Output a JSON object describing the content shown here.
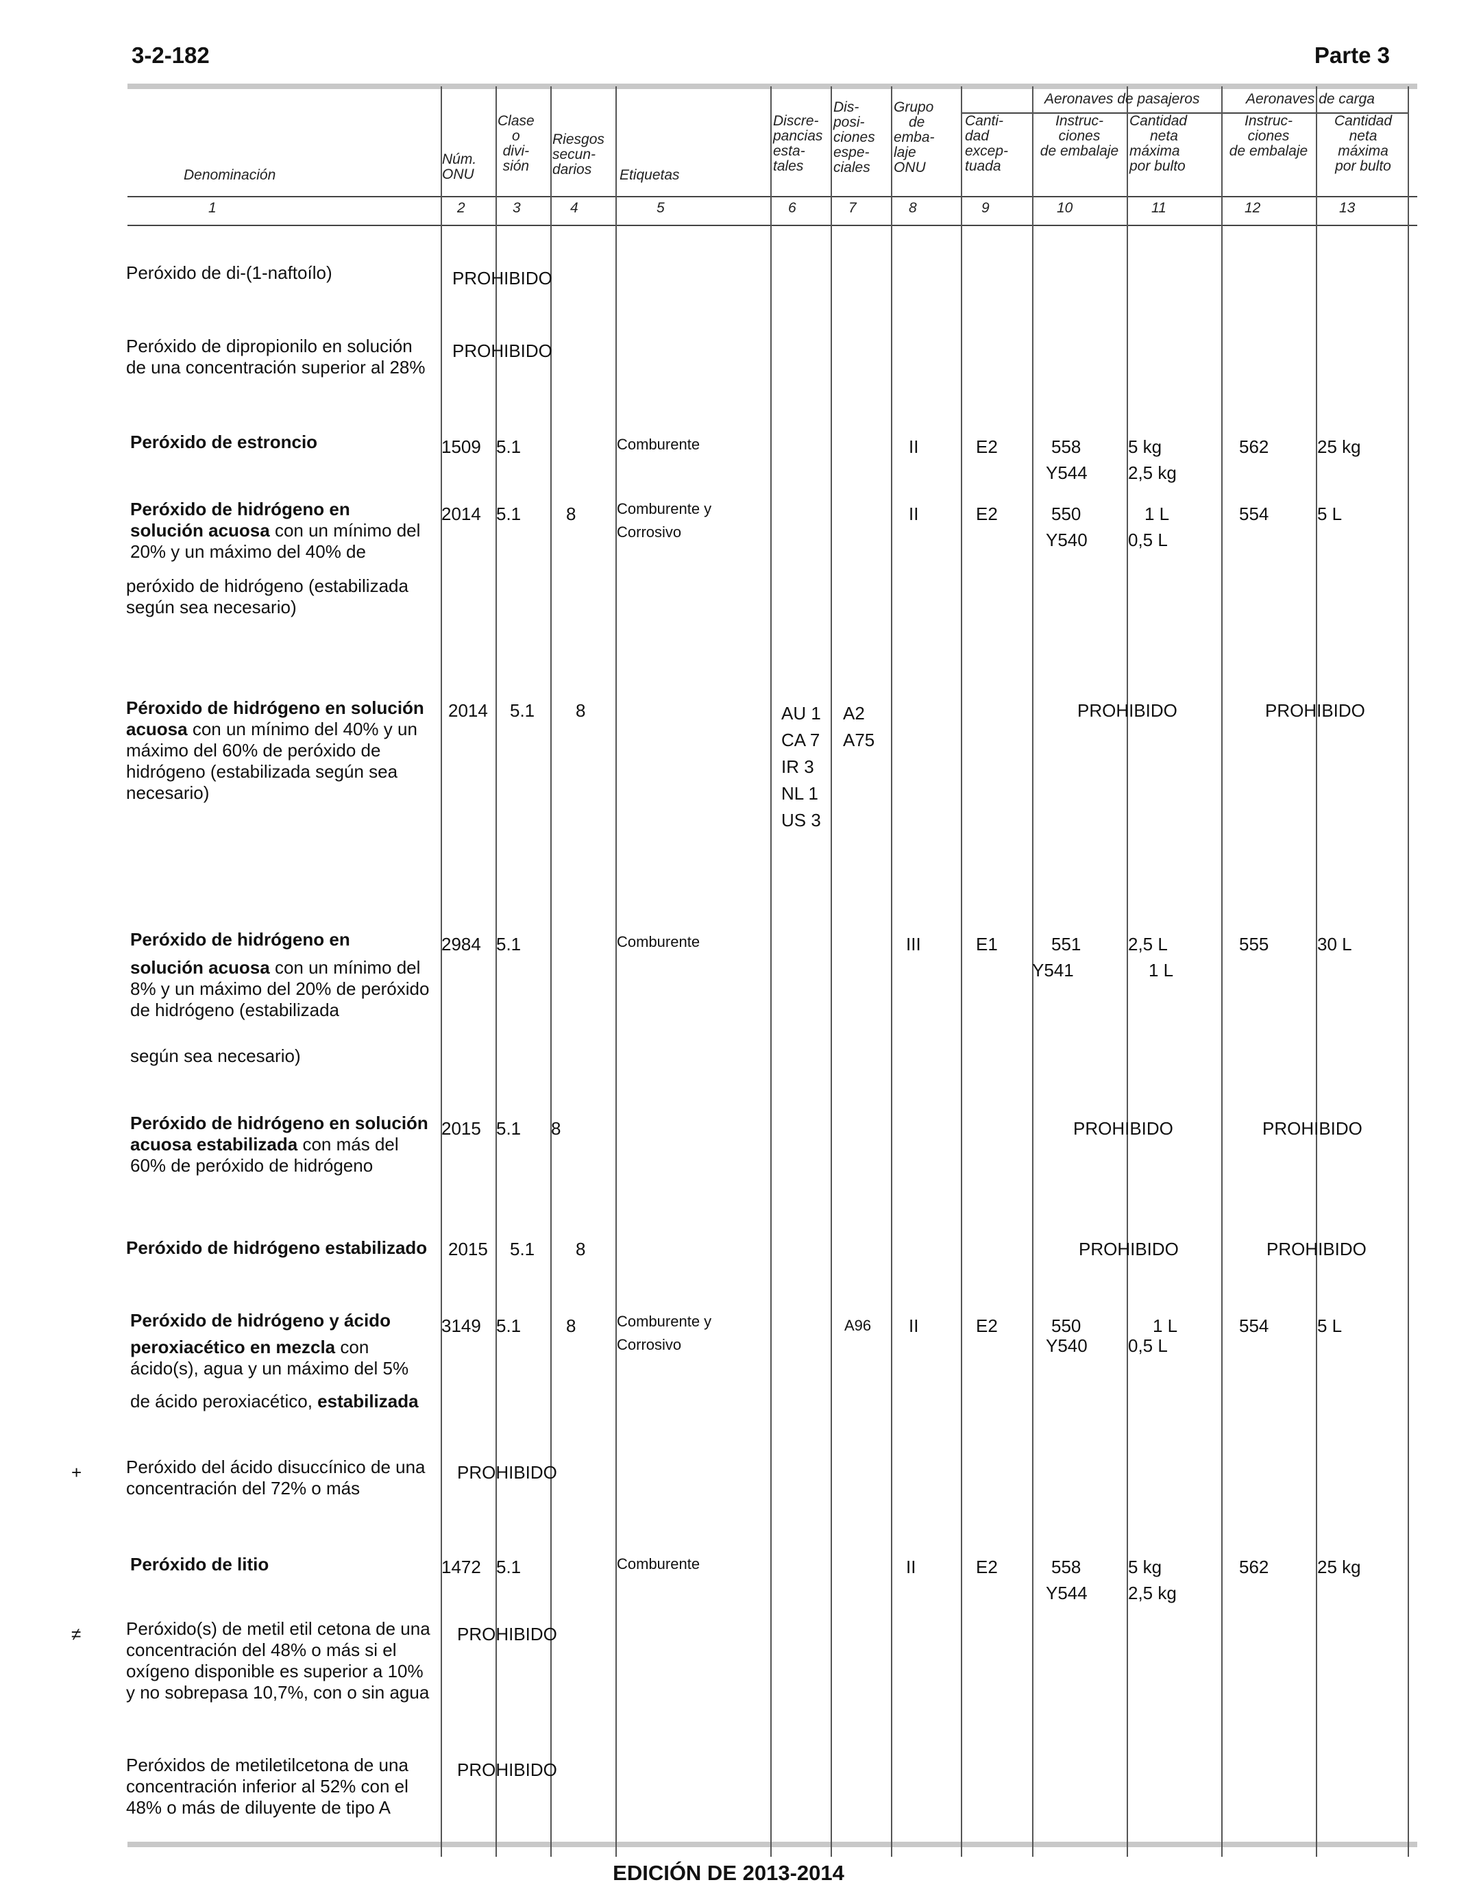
{
  "page": {
    "number": "3-2-182",
    "part": "Parte 3",
    "footer": "EDICIÓN DE 2013-2014"
  },
  "headers": {
    "passenger_group": "Aeronaves de pasajeros",
    "cargo_group": "Aeronaves de carga",
    "c1": "Denominación",
    "c2": [
      "Núm.",
      "ONU"
    ],
    "c3": [
      "Clase",
      "o",
      "divi-",
      "sión"
    ],
    "c4": [
      "Riesgos",
      "secun-",
      "darios"
    ],
    "c5": "Etiquetas",
    "c6": [
      "Discre-",
      "pancias",
      "esta-",
      "tales"
    ],
    "c7": [
      "Dis-",
      "posi-",
      "ciones",
      "espe-",
      "ciales"
    ],
    "c8": [
      "Grupo",
      "de",
      "emba-",
      "laje",
      "ONU"
    ],
    "c9": [
      "Canti-",
      "dad",
      "excep-",
      "tuada"
    ],
    "c10": [
      "Instruc-",
      "ciones",
      "de embalaje"
    ],
    "c11": [
      "Cantidad",
      "neta",
      "máxima",
      "por bulto"
    ],
    "c12": [
      "Instruc-",
      "ciones",
      "de embalaje"
    ],
    "c13": [
      "Cantidad",
      "neta",
      "máxima",
      "por bulto"
    ],
    "numbers": [
      "1",
      "2",
      "3",
      "4",
      "5",
      "6",
      "7",
      "8",
      "9",
      "10",
      "11",
      "12",
      "13"
    ]
  },
  "rows": [
    {
      "name_plain": "Peróxido de di-(1-naftoílo)",
      "prohibido": "PROHIBIDO"
    },
    {
      "name_plain": "Peróxido de dipropionilo en solución de una concentración superior al 28%",
      "prohibido": "PROHIBIDO"
    },
    {
      "name_bold": "Peróxido de estroncio",
      "un": "1509",
      "clase": "5.1",
      "etiqueta": "Comburente",
      "grupo": "II",
      "exc": "E2",
      "pi_pax": [
        "558",
        "Y544"
      ],
      "qty_pax": [
        "5 kg",
        "2,5 kg"
      ],
      "pi_cargo": "562",
      "qty_cargo": "25 kg"
    },
    {
      "name_bold1": "Peróxido de hidrógeno en",
      "name_bold2": "solución acuosa",
      "name_rest1": " con un mínimo del 20% y un máximo del 40% de",
      "name_rest2": "peróxido de hidrógeno (estabilizada según sea necesario)",
      "un": "2014",
      "clase": "5.1",
      "riesgo": "8",
      "etiqueta": [
        "Comburente y",
        "Corrosivo"
      ],
      "grupo": "II",
      "exc": "E2",
      "pi_pax": [
        "550",
        "Y540"
      ],
      "qty_pax": [
        "1 L",
        "0,5 L"
      ],
      "pi_cargo": "554",
      "qty_cargo": "5 L"
    },
    {
      "name_bold": "Péroxido de hidrógeno en solución acuosa",
      "name_rest": " con un mínimo del 40% y un máximo del 60% de peróxido de hidrógeno (estabilizada según sea necesario)",
      "un": "2014",
      "clase": "5.1",
      "riesgo": "8",
      "discrepancias": [
        "AU 1",
        "CA 7",
        "IR 3",
        "NL 1",
        "US 3"
      ],
      "disposiciones": [
        "A2",
        "A75"
      ],
      "prohibido_pax": "PROHIBIDO",
      "prohibido_cargo": "PROHIBIDO"
    },
    {
      "name_bold1": "Peróxido de hidrógeno en",
      "name_bold2": "solución acuosa",
      "name_rest1": " con un mínimo del 8% y un máximo del 20% de peróxido de hidrógeno (estabilizada",
      "name_rest2": "según sea necesario)",
      "un": "2984",
      "clase": "5.1",
      "etiqueta": "Comburente",
      "grupo": "III",
      "exc": "E1",
      "pi_pax": [
        "551",
        "Y541"
      ],
      "qty_pax": [
        "2,5 L",
        "1 L"
      ],
      "pi_cargo": "555",
      "qty_cargo": "30 L"
    },
    {
      "name_bold": "Peróxido de hidrógeno en solución acuosa estabilizada",
      "name_rest": " con más del 60% de peróxido de hidrógeno",
      "un": "2015",
      "clase": "5.1",
      "riesgo": "8",
      "prohibido_pax": "PROHIBIDO",
      "prohibido_cargo": "PROHIBIDO"
    },
    {
      "name_bold": "Peróxido de hidrógeno estabilizado",
      "un": "2015",
      "clase": "5.1",
      "riesgo": "8",
      "prohibido_pax": "PROHIBIDO",
      "prohibido_cargo": "PROHIBIDO"
    },
    {
      "name_bold1": "Peróxido de hidrógeno y ácido",
      "name_bold2": "peroxiacético en mezcla",
      "name_rest1": " con ácido(s), agua y un máximo del 5%",
      "name_rest2": "de ácido peroxiacético, ",
      "name_bold3": "estabilizada",
      "un": "3149",
      "clase": "5.1",
      "riesgo": "8",
      "etiqueta": [
        "Comburente y",
        "Corrosivo"
      ],
      "disposiciones": "A96",
      "grupo": "II",
      "exc": "E2",
      "pi_pax": [
        "550",
        "Y540"
      ],
      "qty_pax": [
        "1 L",
        "0,5 L"
      ],
      "pi_cargo": "554",
      "qty_cargo": "5 L"
    },
    {
      "mark": "+",
      "name_plain": "Peróxido del ácido disuccínico de una concentración del 72% o más",
      "prohibido": "PROHIBIDO"
    },
    {
      "name_bold": "Peróxido de litio",
      "un": "1472",
      "clase": "5.1",
      "etiqueta": "Comburente",
      "grupo": "II",
      "exc": "E2",
      "pi_pax": [
        "558",
        "Y544"
      ],
      "qty_pax": [
        "5 kg",
        "2,5 kg"
      ],
      "pi_cargo": "562",
      "qty_cargo": "25 kg"
    },
    {
      "mark": "≠",
      "name_plain": "Peróxido(s) de metil etil cetona de una concentración del 48% o más si el oxígeno disponible es superior a 10% y no sobrepasa 10,7%, con o sin agua",
      "prohibido": "PROHIBIDO"
    },
    {
      "name_plain": "Peróxidos de metiletilcetona de una concentración inferior al 52% con el 48% o más de diluyente de tipo A",
      "prohibido": "PROHIBIDO"
    }
  ]
}
